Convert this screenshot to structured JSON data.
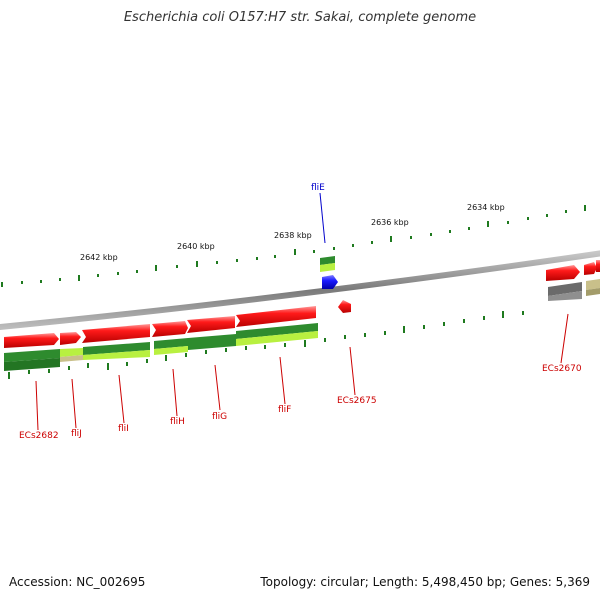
{
  "title": "Escherichia coli O157:H7 str. Sakai, complete genome",
  "footer": {
    "accession": "Accession: NC_002695",
    "summary": "Topology: circular; Length: 5,498,450 bp; Genes: 5,369"
  },
  "colors": {
    "backbone": "#8a8a8a",
    "forward_gene": "#ff1a1a",
    "highlight_gene": "#1a1aff",
    "label_red": "#cc0000",
    "label_blue": "#0000cc",
    "tick": "#1f7a1f",
    "orf_dark": "#2e8b2e",
    "orf_light": "#b8f040",
    "orf_grey": "#6b6b6b",
    "orf_khaki": "#c9c08a"
  },
  "kbp_ticks": [
    "2642 kbp",
    "2640 kbp",
    "2638 kbp",
    "2636 kbp",
    "2634 kbp"
  ],
  "gene_labels": {
    "ecs2682": "ECs2682",
    "flij": "fliJ",
    "flii": "fliI",
    "flih": "fliH",
    "flig": "fliG",
    "flif": "fliF",
    "ecs2675": "ECs2675",
    "ecs2670": "ECs2670",
    "flie": "fliE"
  }
}
